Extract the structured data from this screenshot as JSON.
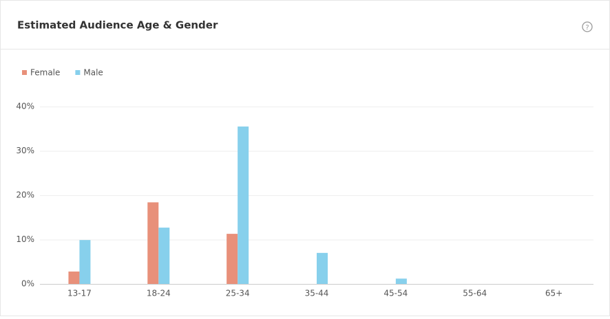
{
  "chart_data": {
    "type": "bar",
    "title": "Estimated Audience Age & Gender",
    "categories": [
      "13-17",
      "18-24",
      "25-34",
      "35-44",
      "45-54",
      "55-64",
      "65+"
    ],
    "series": [
      {
        "name": "Female",
        "color": "#e8907a",
        "values": [
          2.8,
          18.4,
          11.3,
          0,
          0,
          0,
          0
        ]
      },
      {
        "name": "Male",
        "color": "#87d0ec",
        "values": [
          9.9,
          12.7,
          35.5,
          7.0,
          1.2,
          0,
          0
        ]
      }
    ],
    "ylim": [
      0,
      40
    ],
    "yticks": [
      {
        "value": 0,
        "label": "0%"
      },
      {
        "value": 10,
        "label": "10%"
      },
      {
        "value": 20,
        "label": "20%"
      },
      {
        "value": 30,
        "label": "30%"
      },
      {
        "value": 40,
        "label": "40%"
      }
    ],
    "grid": true,
    "legend": "top-left"
  }
}
